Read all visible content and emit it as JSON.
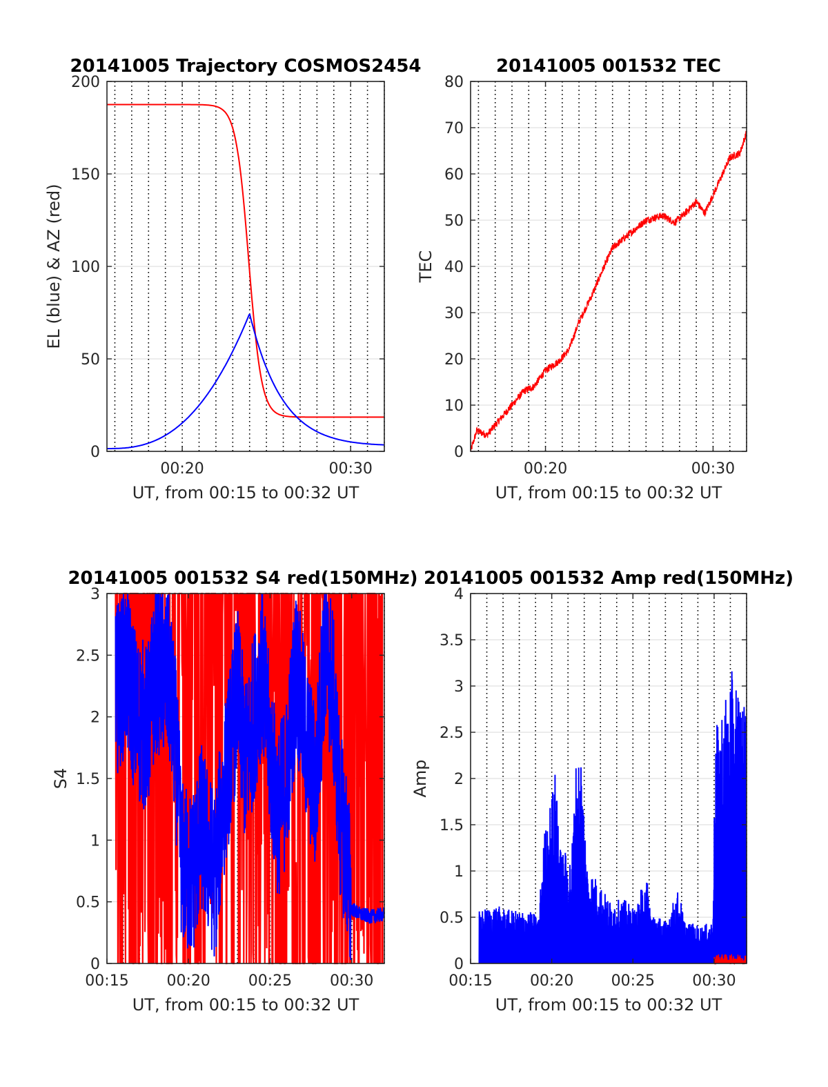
{
  "figure": {
    "colors": {
      "el": "#0000ff",
      "az": "#ff0000",
      "tec": "#ff0000",
      "s4_red": "#ff0000",
      "s4_blue": "#0000ff",
      "amp_red": "#ff0000",
      "amp_blue": "#0000ff",
      "grid": "#d9d9d9",
      "vgrid": "#000000",
      "axis": "#262626"
    }
  },
  "chart_data": [
    {
      "id": "trajectory",
      "type": "line",
      "title": "20141005 Trajectory COSMOS2454",
      "xlabel": "UT, from 00:15 to 00:32 UT",
      "ylabel": "EL (blue) & AZ (red)",
      "xlim": [
        15.53,
        32
      ],
      "ylim": [
        0,
        200
      ],
      "yticks": [
        0,
        50,
        100,
        150,
        200
      ],
      "xticks": [
        20,
        30
      ],
      "xticklabels": [
        "00:20",
        "00:30"
      ],
      "minute_grid": true,
      "series": [
        {
          "color": "az",
          "style": "sigmoid",
          "params": {
            "from": 187.5,
            "to": 18.5,
            "center": 23.95,
            "width": 0.38
          }
        },
        {
          "color": "el",
          "style": "peak",
          "params": {
            "start": 1.5,
            "peak": 74.5,
            "end": 3.5,
            "peak_x": 24.0
          }
        }
      ]
    },
    {
      "id": "tec",
      "type": "line",
      "title": "20141005 001532 TEC",
      "xlabel": "UT, from 00:15 to 00:32 UT",
      "ylabel": "TEC",
      "xlim": [
        15.53,
        32
      ],
      "ylim": [
        0,
        80
      ],
      "yticks": [
        0,
        10,
        20,
        30,
        40,
        50,
        60,
        70,
        80
      ],
      "xticks": [
        20,
        30
      ],
      "xticklabels": [
        "00:20",
        "00:30"
      ],
      "minute_grid": true,
      "series": [
        {
          "color": "tec",
          "style": "noisy",
          "points": [
            [
              15.53,
              0
            ],
            [
              15.9,
              4.5
            ],
            [
              16.5,
              3.5
            ],
            [
              17.3,
              7
            ],
            [
              18,
              10
            ],
            [
              18.7,
              13
            ],
            [
              19.3,
              14
            ],
            [
              20,
              17.5
            ],
            [
              20.8,
              19.5
            ],
            [
              21.4,
              22
            ],
            [
              22,
              28
            ],
            [
              22.8,
              34
            ],
            [
              23.5,
              40
            ],
            [
              24,
              44
            ],
            [
              25,
              47
            ],
            [
              26,
              50
            ],
            [
              27,
              51
            ],
            [
              27.7,
              49.5
            ],
            [
              28.2,
              51
            ],
            [
              29,
              54
            ],
            [
              29.5,
              51.5
            ],
            [
              30.2,
              57
            ],
            [
              31,
              63.5
            ],
            [
              31.6,
              64.5
            ],
            [
              32,
              69
            ]
          ]
        }
      ]
    },
    {
      "id": "s4",
      "type": "line",
      "title": "20141005 001532 S4 red(150MHz)",
      "xlabel": "UT, from 00:15 to 00:32 UT",
      "ylabel": "S4",
      "xlim": [
        15,
        32
      ],
      "ylim": [
        0,
        3
      ],
      "yticks": [
        0,
        0.5,
        1,
        1.5,
        2,
        2.5,
        3
      ],
      "yticklabels": [
        "0",
        "0.5",
        "1",
        "1.5",
        "2",
        "2.5",
        "3"
      ],
      "xticks": [
        15,
        20,
        25,
        30
      ],
      "xticklabels": [
        "00:15",
        "00:20",
        "00:25",
        "00:30"
      ],
      "minute_grid": true,
      "series": [
        {
          "color": "s4_red",
          "style": "burst",
          "params": {
            "x0": 15.53,
            "x1": 31.9,
            "lo": 0,
            "hi": 3,
            "n": 700
          }
        },
        {
          "color": "s4_blue",
          "style": "envelope",
          "points": [
            [
              15.53,
              2.2
            ],
            [
              16.2,
              2.4
            ],
            [
              16.8,
              2.0
            ],
            [
              17.5,
              1.9
            ],
            [
              18,
              2.4
            ],
            [
              18.8,
              2.3
            ],
            [
              19.2,
              1.8
            ],
            [
              19.6,
              0.8
            ],
            [
              20.2,
              0.7
            ],
            [
              20.8,
              1.1
            ],
            [
              21.2,
              0.9
            ],
            [
              21.6,
              0.7
            ],
            [
              22.2,
              1.4
            ],
            [
              23,
              2.2
            ],
            [
              23.5,
              1.6
            ],
            [
              24,
              2.0
            ],
            [
              24.5,
              2.4
            ],
            [
              25,
              1.7
            ],
            [
              25.5,
              1.2
            ],
            [
              26,
              1.5
            ],
            [
              26.6,
              2.4
            ],
            [
              27.2,
              1.8
            ],
            [
              27.8,
              1.4
            ],
            [
              28.3,
              2.5
            ],
            [
              28.8,
              2.3
            ],
            [
              29.3,
              1.2
            ],
            [
              29.7,
              0.9
            ],
            [
              29.95,
              0.45
            ],
            [
              30.5,
              0.4
            ],
            [
              31.2,
              0.38
            ],
            [
              32,
              0.4
            ]
          ]
        }
      ]
    },
    {
      "id": "amp",
      "type": "line",
      "title": "20141005 001532 Amp red(150MHz)",
      "xlabel": "UT, from 00:15 to 00:32 UT",
      "ylabel": "Amp",
      "xlim": [
        15,
        32
      ],
      "ylim": [
        0,
        4
      ],
      "yticks": [
        0,
        0.5,
        1,
        1.5,
        2,
        2.5,
        3,
        3.5,
        4
      ],
      "yticklabels": [
        "0",
        "0.5",
        "1",
        "1.5",
        "2",
        "2.5",
        "3",
        "3.5",
        "4"
      ],
      "xticks": [
        15,
        20,
        25,
        30
      ],
      "xticklabels": [
        "00:15",
        "00:20",
        "00:25",
        "00:30"
      ],
      "minute_grid": true,
      "series": [
        {
          "color": "amp_blue",
          "style": "envelope",
          "points": [
            [
              15.53,
              0.5
            ],
            [
              16.5,
              0.55
            ],
            [
              17.5,
              0.5
            ],
            [
              18.5,
              0.5
            ],
            [
              19.2,
              0.45
            ],
            [
              19.5,
              1.2
            ],
            [
              20,
              1.6
            ],
            [
              20.3,
              1.9
            ],
            [
              20.5,
              1.1
            ],
            [
              21.2,
              1.0
            ],
            [
              21.5,
              1.9
            ],
            [
              21.8,
              2.0
            ],
            [
              22.2,
              0.9
            ],
            [
              22.8,
              0.8
            ],
            [
              23.5,
              0.6
            ],
            [
              24.5,
              0.6
            ],
            [
              25.2,
              0.5
            ],
            [
              25.8,
              0.9
            ],
            [
              26.1,
              0.5
            ],
            [
              27,
              0.4
            ],
            [
              27.8,
              0.7
            ],
            [
              28.2,
              0.4
            ],
            [
              29.2,
              0.35
            ],
            [
              29.9,
              0.4
            ],
            [
              30.1,
              2.2
            ],
            [
              30.6,
              2.5
            ],
            [
              31.2,
              2.8
            ],
            [
              31.6,
              2.6
            ],
            [
              32,
              2.4
            ]
          ]
        },
        {
          "color": "amp_red",
          "style": "floor",
          "params": {
            "x0": 30.0,
            "x1": 32,
            "hi": 0.1
          }
        }
      ]
    }
  ]
}
